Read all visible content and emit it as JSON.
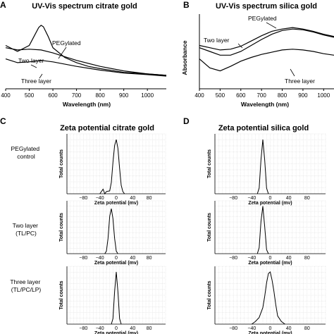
{
  "panel_letters": [
    "A",
    "B",
    "C",
    "D"
  ],
  "zeta_row_labels": [
    [
      "PEGylated",
      "control"
    ],
    [
      "Two layer",
      "(TL/PC)"
    ],
    [
      "Three layer",
      "(TL/PC/LP)"
    ]
  ],
  "chart_data": [
    {
      "panel": "A",
      "type": "line",
      "title": "UV-Vis spectrum citrate gold",
      "xlabel": "Wavelength (nm)",
      "ylabel": "",
      "xlim": [
        400,
        1080
      ],
      "x_ticks": [
        "400",
        "500",
        "600",
        "700",
        "800",
        "900",
        "1000"
      ],
      "series": [
        {
          "name": "PEGylated",
          "x": [
            400,
            450,
            500,
            520,
            540,
            550,
            560,
            580,
            600,
            650,
            700,
            750,
            800,
            900,
            1000,
            1080
          ],
          "y": [
            0.58,
            0.5,
            0.58,
            0.7,
            0.82,
            0.85,
            0.83,
            0.7,
            0.55,
            0.42,
            0.35,
            0.3,
            0.27,
            0.22,
            0.2,
            0.18
          ]
        },
        {
          "name": "Two layer",
          "x": [
            400,
            450,
            500,
            550,
            600,
            650,
            700,
            800,
            900,
            1000,
            1080
          ],
          "y": [
            0.55,
            0.52,
            0.53,
            0.52,
            0.48,
            0.43,
            0.38,
            0.3,
            0.24,
            0.2,
            0.18
          ]
        },
        {
          "name": "Three layer",
          "x": [
            400,
            450,
            500,
            550,
            600,
            700,
            800,
            900,
            1000,
            1080
          ],
          "y": [
            0.4,
            0.35,
            0.36,
            0.38,
            0.36,
            0.3,
            0.25,
            0.21,
            0.19,
            0.17
          ]
        }
      ],
      "annotations": [
        "PEGylated",
        "Two layer",
        "Three layer"
      ]
    },
    {
      "panel": "B",
      "type": "line",
      "title": "UV-Vis spectrum silica gold",
      "xlabel": "Wavelength (nm)",
      "ylabel": "Absorbance",
      "xlim": [
        400,
        1050
      ],
      "x_ticks": [
        "400",
        "500",
        "600",
        "700",
        "800",
        "900",
        "1000"
      ],
      "series": [
        {
          "name": "PEGylated",
          "x": [
            400,
            450,
            500,
            550,
            600,
            650,
            700,
            750,
            800,
            850,
            900,
            950,
            1000,
            1050
          ],
          "y": [
            0.58,
            0.55,
            0.52,
            0.53,
            0.57,
            0.64,
            0.71,
            0.77,
            0.8,
            0.82,
            0.8,
            0.77,
            0.73,
            0.7
          ]
        },
        {
          "name": "Two layer",
          "x": [
            400,
            450,
            500,
            550,
            600,
            650,
            700,
            750,
            800,
            850,
            900,
            950,
            1000,
            1050
          ],
          "y": [
            0.55,
            0.5,
            0.45,
            0.45,
            0.5,
            0.58,
            0.66,
            0.73,
            0.78,
            0.8,
            0.79,
            0.76,
            0.72,
            0.69
          ]
        },
        {
          "name": "Three layer",
          "x": [
            400,
            450,
            500,
            550,
            600,
            650,
            700,
            750,
            800,
            850,
            900,
            950,
            1000,
            1050
          ],
          "y": [
            0.4,
            0.28,
            0.24,
            0.3,
            0.37,
            0.42,
            0.46,
            0.49,
            0.52,
            0.53,
            0.52,
            0.5,
            0.47,
            0.45
          ]
        }
      ],
      "annotations": [
        "PEGylated",
        "Two layer",
        "Three layer"
      ]
    },
    {
      "panel": "C",
      "type": "line",
      "title": "Zeta potential citrate gold",
      "subplots": [
        {
          "row": 0,
          "xlabel": "Zeta potential (mv)",
          "ylabel": "Total counts",
          "x_ticks": [
            "-80",
            "-40",
            "0",
            "40",
            "80"
          ],
          "xlim": [
            -120,
            120
          ],
          "x": [
            -40,
            -32,
            -28,
            -24,
            -16,
            -12,
            -8,
            -4,
            0,
            4,
            8,
            12,
            16,
            20
          ],
          "y": [
            0.0,
            0.08,
            0.0,
            0.04,
            0.05,
            0.2,
            0.55,
            0.85,
            0.95,
            0.8,
            0.45,
            0.15,
            0.04,
            0.0
          ]
        },
        {
          "row": 1,
          "xlabel": "Zeta potential (mv)",
          "ylabel": "Total counts",
          "x_ticks": [
            "-80",
            "-40",
            "0",
            "40",
            "80"
          ],
          "xlim": [
            -120,
            120
          ],
          "x": [
            -28,
            -24,
            -20,
            -16,
            -12,
            -8,
            -4,
            0,
            4
          ],
          "y": [
            0.0,
            0.05,
            0.3,
            0.75,
            0.9,
            0.7,
            0.3,
            0.05,
            0.0
          ]
        },
        {
          "row": 2,
          "xlabel": "Zeta potential (mv)",
          "ylabel": "Total counts",
          "x_ticks": [
            "-80",
            "-40",
            "0",
            "40",
            "80"
          ],
          "xlim": [
            -120,
            120
          ],
          "x": [
            -12,
            -8,
            -4,
            0,
            4,
            8,
            12
          ],
          "y": [
            0.0,
            0.1,
            0.6,
            0.95,
            0.6,
            0.1,
            0.0
          ]
        }
      ]
    },
    {
      "panel": "D",
      "type": "line",
      "title": "Zeta potential silica gold",
      "subplots": [
        {
          "row": 0,
          "xlabel": "Zeta potential (mv)",
          "ylabel": "Total counts",
          "x_ticks": [
            "-80",
            "-40",
            "0",
            "40",
            "80"
          ],
          "xlim": [
            -120,
            120
          ],
          "x": [
            -28,
            -24,
            -20,
            -16,
            -12,
            -8,
            -4
          ],
          "y": [
            0.0,
            0.1,
            0.6,
            0.95,
            0.6,
            0.1,
            0.0
          ]
        },
        {
          "row": 1,
          "xlabel": "Zeta potential (mv)",
          "ylabel": "Total counts",
          "x_ticks": [
            "-80",
            "-40",
            "0",
            "40",
            "80"
          ],
          "xlim": [
            -120,
            120
          ],
          "x": [
            -28,
            -24,
            -20,
            -16,
            -12,
            -8,
            -4
          ],
          "y": [
            0.0,
            0.12,
            0.65,
            0.95,
            0.55,
            0.08,
            0.0
          ]
        },
        {
          "row": 2,
          "xlabel": "Zeta potential (mv)",
          "ylabel": "Total counts",
          "x_ticks": [
            "-80",
            "-40",
            "0",
            "40",
            "80"
          ],
          "xlim": [
            -120,
            120
          ],
          "x": [
            -40,
            -32,
            -24,
            -16,
            -12,
            -8,
            -4,
            0,
            4,
            8,
            12,
            16,
            24,
            32
          ],
          "y": [
            0.0,
            0.05,
            0.12,
            0.3,
            0.5,
            0.75,
            0.92,
            0.95,
            0.8,
            0.6,
            0.35,
            0.15,
            0.05,
            0.0
          ]
        }
      ]
    }
  ]
}
